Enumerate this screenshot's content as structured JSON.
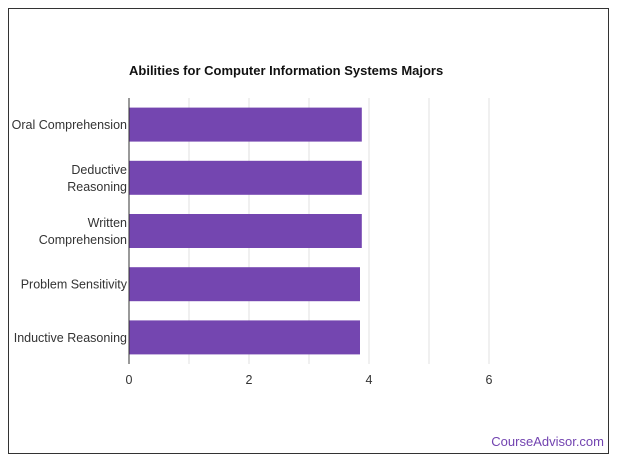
{
  "chart_data": {
    "type": "bar",
    "orientation": "horizontal",
    "title": "Abilities for Computer Information Systems Majors",
    "xlabel": "",
    "ylabel": "",
    "categories": [
      [
        "Oral Comprehension"
      ],
      [
        "Deductive",
        "Reasoning"
      ],
      [
        "Written",
        "Comprehension"
      ],
      [
        "Problem Sensitivity"
      ],
      [
        "Inductive Reasoning"
      ]
    ],
    "values": [
      3.88,
      3.88,
      3.88,
      3.85,
      3.85
    ],
    "xlim": [
      0,
      8
    ],
    "xticks": [
      0,
      2,
      4,
      6
    ],
    "grid": true,
    "bar_color": "#7446b0",
    "grid_color": "#e0e0e0",
    "axis_color": "#333333"
  },
  "brand": {
    "text": "CourseAdvisor.com",
    "color": "#7243b0"
  }
}
